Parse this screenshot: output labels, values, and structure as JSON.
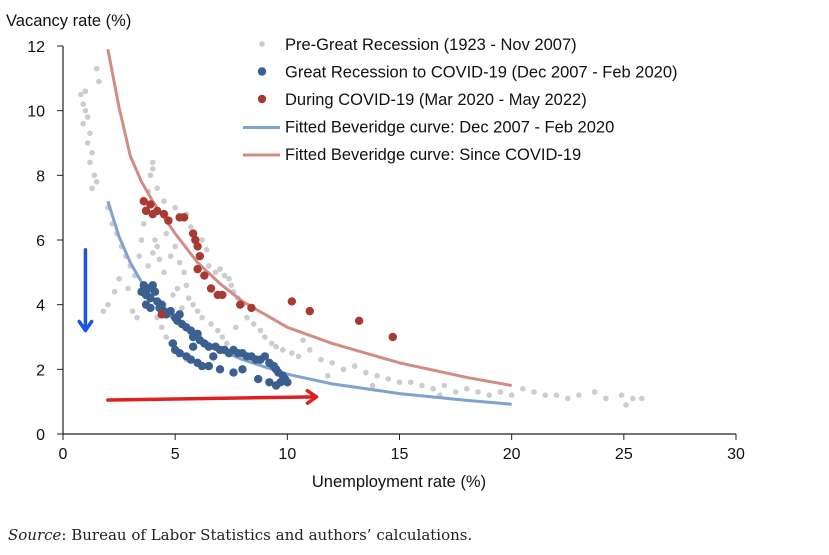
{
  "chart_data": {
    "type": "scatter",
    "ylabel": "Vacancy rate (%)",
    "xlabel": "Unemployment rate (%)",
    "xlim": [
      0,
      30
    ],
    "ylim": [
      0,
      12
    ],
    "xticks": [
      "0",
      "5",
      "10",
      "15",
      "20",
      "25",
      "30"
    ],
    "yticks": [
      "0",
      "2",
      "4",
      "6",
      "8",
      "10",
      "12"
    ],
    "grid": false,
    "legend_position": "top-right",
    "series": [
      {
        "name": "Pre-Great Recession (1923 - Nov 2007)",
        "kind": "points",
        "color": "#c8c8c8",
        "points": [
          [
            0.8,
            10.5
          ],
          [
            0.9,
            10.2
          ],
          [
            1.0,
            10.0
          ],
          [
            1.1,
            9.8
          ],
          [
            0.9,
            9.6
          ],
          [
            1.2,
            9.3
          ],
          [
            1.1,
            9.0
          ],
          [
            1.3,
            8.7
          ],
          [
            1.2,
            8.4
          ],
          [
            1.4,
            8.0
          ],
          [
            1.5,
            7.8
          ],
          [
            1.3,
            7.6
          ],
          [
            1.0,
            10.6
          ],
          [
            1.5,
            11.3
          ],
          [
            1.6,
            10.9
          ],
          [
            2.0,
            7.0
          ],
          [
            2.2,
            6.5
          ],
          [
            2.4,
            6.2
          ],
          [
            2.6,
            5.8
          ],
          [
            2.8,
            5.5
          ],
          [
            3.0,
            5.2
          ],
          [
            2.5,
            4.8
          ],
          [
            2.3,
            4.4
          ],
          [
            2.0,
            4.0
          ],
          [
            1.8,
            3.8
          ],
          [
            2.9,
            4.5
          ],
          [
            3.2,
            4.9
          ],
          [
            3.4,
            5.5
          ],
          [
            3.5,
            6.0
          ],
          [
            3.6,
            6.5
          ],
          [
            3.7,
            7.0
          ],
          [
            3.8,
            7.5
          ],
          [
            3.9,
            8.0
          ],
          [
            4.0,
            8.4
          ],
          [
            3.3,
            3.6
          ],
          [
            3.1,
            3.8
          ],
          [
            3.8,
            5.2
          ],
          [
            4.0,
            5.6
          ],
          [
            4.1,
            6.0
          ],
          [
            4.2,
            5.8
          ],
          [
            4.3,
            5.4
          ],
          [
            4.5,
            5.0
          ],
          [
            4.6,
            6.2
          ],
          [
            4.8,
            5.5
          ],
          [
            5.0,
            5.8
          ],
          [
            5.2,
            5.3
          ],
          [
            5.4,
            5.0
          ],
          [
            5.5,
            4.6
          ],
          [
            5.6,
            4.2
          ],
          [
            5.8,
            4.0
          ],
          [
            6.0,
            3.8
          ],
          [
            6.2,
            3.6
          ],
          [
            4.5,
            4.0
          ],
          [
            4.7,
            3.8
          ],
          [
            4.9,
            4.3
          ],
          [
            5.1,
            4.5
          ],
          [
            5.3,
            3.9
          ],
          [
            4.4,
            3.3
          ],
          [
            4.6,
            3.0
          ],
          [
            4.8,
            2.8
          ],
          [
            5.0,
            2.6
          ],
          [
            5.3,
            2.5
          ],
          [
            5.5,
            2.3
          ],
          [
            4.2,
            3.6
          ],
          [
            6.5,
            5.2
          ],
          [
            6.8,
            5.0
          ],
          [
            7.0,
            5.1
          ],
          [
            7.2,
            4.9
          ],
          [
            7.4,
            4.8
          ],
          [
            7.5,
            4.6
          ],
          [
            7.6,
            4.4
          ],
          [
            7.8,
            4.2
          ],
          [
            8.0,
            4.0
          ],
          [
            6.4,
            5.7
          ],
          [
            6.2,
            6.0
          ],
          [
            5.7,
            6.4
          ],
          [
            5.5,
            6.8
          ],
          [
            5.0,
            7.0
          ],
          [
            4.5,
            7.2
          ],
          [
            4.2,
            7.6
          ],
          [
            4.0,
            8.2
          ],
          [
            6.6,
            3.4
          ],
          [
            6.9,
            3.2
          ],
          [
            7.1,
            3.0
          ],
          [
            7.3,
            2.8
          ],
          [
            7.7,
            3.3
          ],
          [
            8.2,
            3.6
          ],
          [
            8.5,
            3.4
          ],
          [
            8.8,
            3.2
          ],
          [
            9.0,
            3.0
          ],
          [
            9.3,
            2.8
          ],
          [
            9.5,
            2.7
          ],
          [
            9.8,
            2.6
          ],
          [
            10.2,
            2.5
          ],
          [
            10.5,
            2.4
          ],
          [
            11.0,
            2.6
          ],
          [
            11.5,
            2.3
          ],
          [
            12.0,
            2.2
          ],
          [
            12.5,
            2.0
          ],
          [
            13.0,
            2.1
          ],
          [
            13.5,
            1.9
          ],
          [
            14.0,
            1.8
          ],
          [
            14.5,
            1.7
          ],
          [
            15.0,
            1.6
          ],
          [
            15.5,
            1.6
          ],
          [
            16.0,
            1.5
          ],
          [
            16.5,
            1.4
          ],
          [
            17.0,
            1.5
          ],
          [
            17.5,
            1.3
          ],
          [
            18.0,
            1.4
          ],
          [
            18.5,
            1.3
          ],
          [
            19.0,
            1.2
          ],
          [
            19.5,
            1.3
          ],
          [
            20.0,
            1.2
          ],
          [
            20.5,
            1.4
          ],
          [
            21.0,
            1.3
          ],
          [
            21.5,
            1.2
          ],
          [
            22.0,
            1.2
          ],
          [
            22.5,
            1.1
          ],
          [
            23.0,
            1.2
          ],
          [
            23.7,
            1.3
          ],
          [
            24.2,
            1.1
          ],
          [
            24.9,
            1.2
          ],
          [
            25.4,
            1.1
          ],
          [
            25.8,
            1.1
          ],
          [
            25.1,
            0.9
          ],
          [
            11.8,
            1.8
          ],
          [
            13.8,
            1.5
          ],
          [
            16.8,
            1.2
          ],
          [
            10.7,
            2.9
          ]
        ]
      },
      {
        "name": "Great Recession to COVID-19 (Dec 2007 - Feb 2020)",
        "kind": "points",
        "color": "#3b5f8f",
        "points": [
          [
            3.5,
            4.4
          ],
          [
            3.6,
            4.6
          ],
          [
            3.7,
            4.3
          ],
          [
            3.8,
            4.5
          ],
          [
            3.9,
            4.2
          ],
          [
            4.0,
            4.6
          ],
          [
            4.1,
            4.4
          ],
          [
            4.2,
            4.1
          ],
          [
            3.7,
            4.0
          ],
          [
            3.9,
            3.9
          ],
          [
            4.3,
            3.9
          ],
          [
            4.5,
            3.8
          ],
          [
            4.6,
            3.7
          ],
          [
            4.8,
            3.8
          ],
          [
            5.0,
            3.6
          ],
          [
            5.1,
            3.5
          ],
          [
            5.3,
            3.4
          ],
          [
            5.5,
            3.3
          ],
          [
            5.7,
            3.2
          ],
          [
            5.8,
            3.0
          ],
          [
            6.0,
            3.1
          ],
          [
            6.1,
            2.9
          ],
          [
            4.9,
            2.8
          ],
          [
            5.0,
            2.6
          ],
          [
            5.2,
            2.5
          ],
          [
            5.5,
            2.4
          ],
          [
            5.7,
            2.3
          ],
          [
            6.0,
            2.2
          ],
          [
            6.2,
            2.1
          ],
          [
            5.8,
            2.7
          ],
          [
            6.3,
            2.8
          ],
          [
            6.5,
            2.7
          ],
          [
            6.8,
            2.7
          ],
          [
            7.0,
            2.6
          ],
          [
            7.2,
            2.6
          ],
          [
            7.4,
            2.5
          ],
          [
            7.6,
            2.6
          ],
          [
            7.8,
            2.5
          ],
          [
            8.0,
            2.5
          ],
          [
            8.2,
            2.4
          ],
          [
            8.4,
            2.4
          ],
          [
            8.6,
            2.3
          ],
          [
            8.8,
            2.3
          ],
          [
            9.0,
            2.4
          ],
          [
            9.2,
            2.2
          ],
          [
            9.4,
            2.1
          ],
          [
            9.5,
            2.0
          ],
          [
            9.6,
            1.9
          ],
          [
            9.8,
            1.8
          ],
          [
            9.9,
            1.7
          ],
          [
            10.0,
            1.6
          ],
          [
            9.7,
            1.6
          ],
          [
            9.5,
            1.5
          ],
          [
            9.2,
            1.6
          ],
          [
            8.7,
            1.7
          ],
          [
            8.0,
            2.0
          ],
          [
            7.6,
            1.9
          ],
          [
            7.0,
            2.0
          ],
          [
            6.5,
            2.1
          ],
          [
            4.4,
            4.0
          ],
          [
            5.2,
            3.7
          ],
          [
            6.7,
            2.4
          ]
        ]
      },
      {
        "name": "During COVID-19 (Mar 2020 - May 2022)",
        "kind": "points",
        "color": "#a83a32",
        "points": [
          [
            3.6,
            7.2
          ],
          [
            3.7,
            6.9
          ],
          [
            3.9,
            7.1
          ],
          [
            4.0,
            6.8
          ],
          [
            4.2,
            6.9
          ],
          [
            4.5,
            6.8
          ],
          [
            4.7,
            6.6
          ],
          [
            5.2,
            6.7
          ],
          [
            5.4,
            6.7
          ],
          [
            5.8,
            6.2
          ],
          [
            5.9,
            6.0
          ],
          [
            6.0,
            5.8
          ],
          [
            6.1,
            5.5
          ],
          [
            6.0,
            5.1
          ],
          [
            6.3,
            4.9
          ],
          [
            6.6,
            4.5
          ],
          [
            6.9,
            4.3
          ],
          [
            7.1,
            4.3
          ],
          [
            7.9,
            4.0
          ],
          [
            8.4,
            3.9
          ],
          [
            10.2,
            4.1
          ],
          [
            11.0,
            3.8
          ],
          [
            13.2,
            3.5
          ],
          [
            14.7,
            3.0
          ],
          [
            4.4,
            3.7
          ]
        ]
      },
      {
        "name": "Fitted Beveridge curve: Dec 2007 - Feb 2020",
        "kind": "line",
        "color": "#7fa3d1",
        "points": [
          [
            2,
            7.2
          ],
          [
            2.5,
            6.1
          ],
          [
            3,
            5.3
          ],
          [
            3.5,
            4.7
          ],
          [
            4,
            4.2
          ],
          [
            5,
            3.5
          ],
          [
            6,
            3.0
          ],
          [
            7,
            2.6
          ],
          [
            8,
            2.3
          ],
          [
            10,
            1.85
          ],
          [
            12,
            1.55
          ],
          [
            15,
            1.25
          ],
          [
            18,
            1.04
          ],
          [
            20,
            0.92
          ]
        ]
      },
      {
        "name": "Fitted Beveridge curve: Since COVID-19",
        "kind": "line",
        "color": "#d08d86",
        "points": [
          [
            2,
            11.9
          ],
          [
            2.5,
            10.1
          ],
          [
            3,
            8.6
          ],
          [
            3.5,
            7.8
          ],
          [
            4,
            7.2
          ],
          [
            5,
            6.2
          ],
          [
            6,
            5.3
          ],
          [
            7,
            4.65
          ],
          [
            8,
            4.1
          ],
          [
            10,
            3.3
          ],
          [
            12,
            2.8
          ],
          [
            15,
            2.2
          ],
          [
            18,
            1.75
          ],
          [
            20,
            1.5
          ]
        ]
      }
    ],
    "annotations": [
      {
        "kind": "arrow",
        "color": "#1a56e0",
        "from": [
          1.0,
          5.7
        ],
        "to": [
          1.0,
          3.2
        ]
      },
      {
        "kind": "arrow",
        "color": "#e02020",
        "from": [
          2.0,
          1.05
        ],
        "to": [
          11.3,
          1.15
        ]
      }
    ]
  },
  "source": {
    "label": "Source",
    "text": ": Bureau of Labor Statistics and authors’ calculations."
  }
}
